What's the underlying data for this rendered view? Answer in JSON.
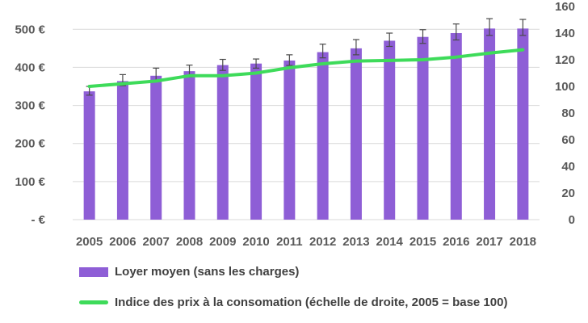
{
  "colors": {
    "bar": "#8E5ED6",
    "line": "#3EDB5A",
    "error": "#4a4a4a",
    "grid": "#d9d9d9",
    "text": "#595959"
  },
  "chart_data": {
    "type": "bar",
    "categories": [
      "2005",
      "2006",
      "2007",
      "2008",
      "2009",
      "2010",
      "2011",
      "2012",
      "2013",
      "2014",
      "2015",
      "2016",
      "2017",
      "2018"
    ],
    "series": [
      {
        "name": "Loyer moyen (sans les charges)",
        "type": "bar",
        "axis": "left",
        "values": [
          337,
          364,
          378,
          390,
          406,
          410,
          418,
          440,
          450,
          470,
          480,
          490,
          502,
          502
        ],
        "error_low": [
          327,
          352,
          362,
          375,
          392,
          398,
          405,
          425,
          433,
          455,
          463,
          472,
          484,
          484
        ],
        "error_high": [
          350,
          381,
          398,
          406,
          421,
          422,
          433,
          461,
          473,
          490,
          499,
          514,
          528,
          526
        ]
      },
      {
        "name": "Indice des prix à la consomation (échelle de droite, 2005 = base 100)",
        "type": "line",
        "axis": "right",
        "values": [
          100,
          102,
          104,
          108,
          108,
          110,
          114,
          117,
          119,
          119.5,
          120,
          122,
          125,
          127.5
        ]
      }
    ],
    "left_axis": {
      "ticks": [
        0,
        100,
        200,
        300,
        400,
        500
      ],
      "tick_labels": [
        "-  €",
        "100 €",
        "200 €",
        "300 €",
        "400 €",
        "500 €"
      ],
      "range": [
        0,
        560
      ]
    },
    "right_axis": {
      "ticks": [
        0,
        20,
        40,
        60,
        80,
        100,
        120,
        140,
        160
      ],
      "tick_labels": [
        "0",
        "20",
        "40",
        "60",
        "80",
        "100",
        "120",
        "140",
        "160"
      ],
      "range": [
        0,
        160
      ]
    },
    "grid": true,
    "legend_placement": "bottom"
  }
}
